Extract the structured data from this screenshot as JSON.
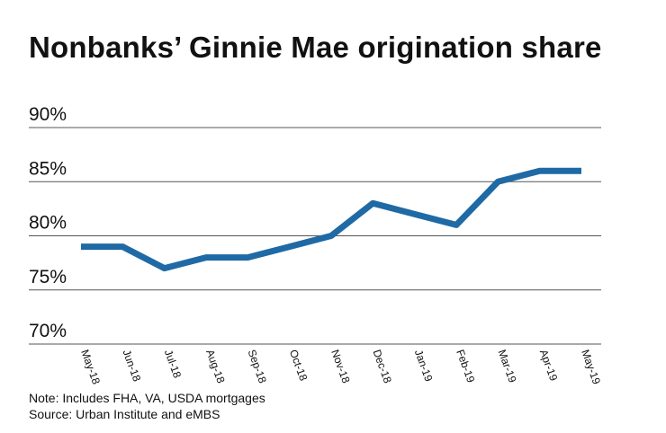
{
  "chart_data": {
    "type": "line",
    "title": "Nonbanks’ Ginnie Mae origination share",
    "categories": [
      "May-18",
      "Jun-18",
      "Jul-18",
      "Aug-18",
      "Sep-18",
      "Oct-18",
      "Nov-18",
      "Dec-18",
      "Jan-19",
      "Feb-19",
      "Mar-19",
      "Apr-19",
      "May-19"
    ],
    "series": [
      {
        "values": [
          79,
          79,
          77,
          78,
          78,
          79,
          80,
          83,
          82,
          81,
          85,
          86,
          86
        ]
      }
    ],
    "y_ticks": [
      "70%",
      "75%",
      "80%",
      "85%",
      "90%"
    ],
    "y_tick_values": [
      70,
      75,
      80,
      85,
      90
    ],
    "ylim": [
      70,
      90
    ],
    "xlabel": "",
    "ylabel": "",
    "grid": true,
    "line_color": "#1f6aa5",
    "grid_color": "#555555"
  },
  "footer": {
    "note": "Note: Includes FHA, VA, USDA mortgages",
    "source": "Source: Urban Institute and eMBS"
  }
}
